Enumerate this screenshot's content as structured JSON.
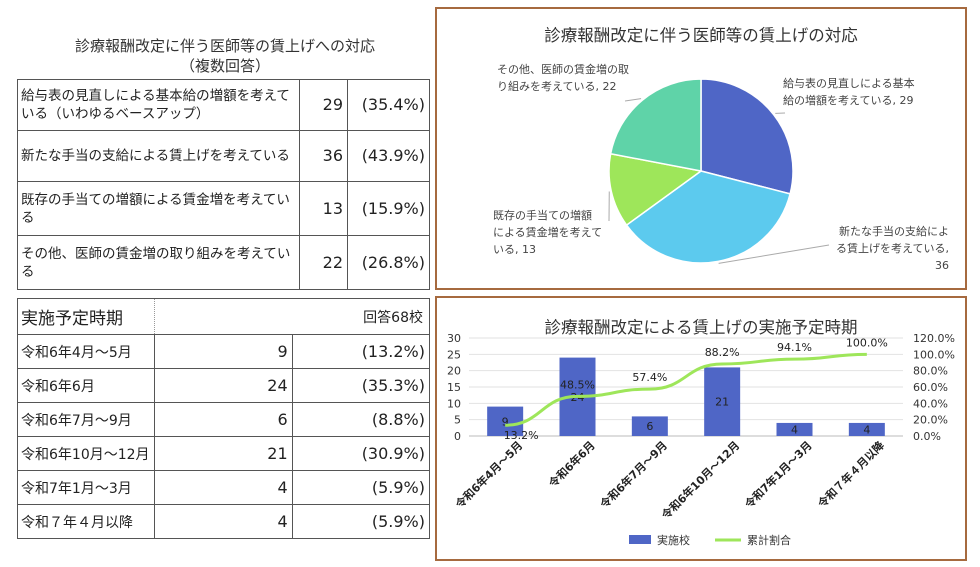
{
  "table1": {
    "title_line1": "診療報酬改定に伴う医師等の賃上げへの対応",
    "title_line2": "（複数回答）",
    "rows": [
      {
        "label": "給与表の見直しによる基本給の増額を考えている（いわゆるベースアップ）",
        "count": "29",
        "pct": "(35.4%)"
      },
      {
        "label": "新たな手当の支給による賃上げを考えている",
        "count": "36",
        "pct": "(43.9%)"
      },
      {
        "label": "既存の手当ての増額による賃金増を考えている",
        "count": "13",
        "pct": "(15.9%)"
      },
      {
        "label": "その他、医師の賃金増の取り組みを考えている",
        "count": "22",
        "pct": "(26.8%)"
      }
    ]
  },
  "table2": {
    "title": "実施予定時期",
    "note": "回答68校",
    "rows": [
      {
        "label": "令和6年4月～5月",
        "count": "9",
        "pct": "(13.2%)"
      },
      {
        "label": "令和6年6月",
        "count": "24",
        "pct": "(35.3%)"
      },
      {
        "label": "令和6年7月～9月",
        "count": "6",
        "pct": "(8.8%)"
      },
      {
        "label": "令和6年10月～12月",
        "count": "21",
        "pct": "(30.9%)"
      },
      {
        "label": "令和7年1月～3月",
        "count": "4",
        "pct": "(5.9%)"
      },
      {
        "label": "令和７年４月以降",
        "count": "4",
        "pct": "(5.9%)"
      }
    ]
  },
  "chart_data": [
    {
      "type": "pie",
      "title": "診療報酬改定に伴う医師等の賃上げの対応",
      "labels": [
        "給与表の見直しによる基本給の増額を考えている",
        "新たな手当の支給による賃上げを考えている",
        "既存の手当ての増額による賃金増を考えている",
        "その他、医師の賃金増の取り組みを考えている"
      ],
      "values": [
        29,
        36,
        13,
        22
      ],
      "data_labels": [
        [
          "給与表の見直しによる基本",
          "給の増額を考えている, 29"
        ],
        [
          "新たな手当の支給によ",
          "る賃上げを考えている,",
          "36"
        ],
        [
          "既存の手当ての増額",
          "による賃金増を考えて",
          "いる, 13"
        ],
        [
          "その他、医師の賃金増の取",
          "り組みを考えている, 22"
        ]
      ],
      "colors": [
        "#4f66c6",
        "#5ccaee",
        "#9ee65a",
        "#5fd3a8"
      ]
    },
    {
      "type": "bar",
      "title": "診療報酬改定による賃上げの実施予定時期",
      "categories": [
        "令和6年4月～5月",
        "令和6年6月",
        "令和6年7月～9月",
        "令和6年10月～12月",
        "令和7年1月～3月",
        "令和７年４月以降"
      ],
      "series": [
        {
          "name": "実施校",
          "type": "bar",
          "values": [
            9,
            24,
            6,
            21,
            4,
            4
          ],
          "color": "#4f66c6"
        },
        {
          "name": "累計割合",
          "type": "line",
          "axis": "right",
          "values": [
            13.2,
            48.5,
            57.4,
            88.2,
            94.1,
            100.0
          ],
          "color": "#9ee65a"
        }
      ],
      "line_labels": [
        "13.2%",
        "48.5%",
        "57.4%",
        "88.2%",
        "94.1%",
        "100.0%"
      ],
      "ylim": [
        0,
        30
      ],
      "yticks": [
        "0",
        "5",
        "10",
        "15",
        "20",
        "25",
        "30"
      ],
      "y2lim": [
        0,
        120
      ],
      "y2ticks": [
        "0.0%",
        "20.0%",
        "40.0%",
        "60.0%",
        "80.0%",
        "100.0%",
        "120.0%"
      ],
      "legend": "bottom"
    }
  ]
}
